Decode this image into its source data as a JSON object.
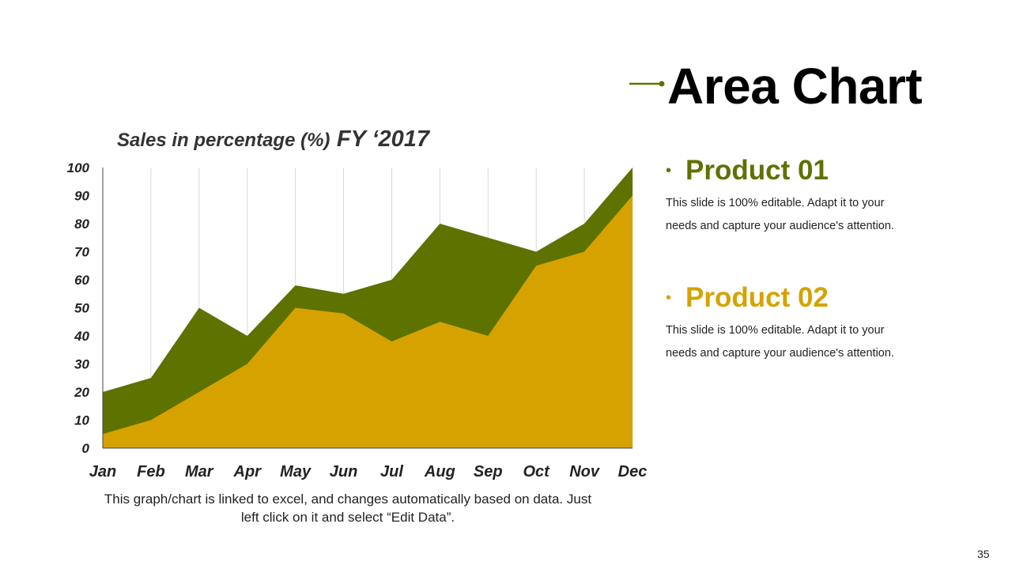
{
  "slide": {
    "title": "Area Chart",
    "page_number": "35",
    "caption": "This graph/chart is linked to excel, and changes automatically based on data. Just left click on it and select “Edit Data”."
  },
  "colors": {
    "product01": "#5E7200",
    "product02": "#D6A200",
    "accent": "#5E7200",
    "grid": "#D9D9D9",
    "axis": "#444444"
  },
  "legend": [
    {
      "title": "Product 01",
      "desc": "This slide is 100% editable. Adapt it to your needs and capture your audience's attention.",
      "color": "#5E7200"
    },
    {
      "title": "Product 02",
      "desc": "This slide is 100% editable. Adapt it to your needs and capture your audience's attention.",
      "color": "#D6A200"
    }
  ],
  "chart_data": {
    "type": "area",
    "title": "Sales in percentage (%)",
    "subtitle": "FY ‘2017",
    "categories": [
      "Jan",
      "Feb",
      "Mar",
      "Apr",
      "May",
      "Jun",
      "Jul",
      "Aug",
      "Sep",
      "Oct",
      "Nov",
      "Dec"
    ],
    "series": [
      {
        "name": "Product 01",
        "values": [
          20,
          25,
          50,
          40,
          58,
          55,
          60,
          80,
          75,
          70,
          80,
          100
        ]
      },
      {
        "name": "Product 02",
        "values": [
          5,
          10,
          20,
          30,
          50,
          48,
          38,
          45,
          40,
          65,
          70,
          90
        ]
      }
    ],
    "ylim": [
      0,
      100
    ],
    "yticks": [
      0,
      10,
      20,
      30,
      40,
      50,
      60,
      70,
      80,
      90,
      100
    ],
    "xlabel": "",
    "ylabel": "",
    "grid": "vertical"
  }
}
